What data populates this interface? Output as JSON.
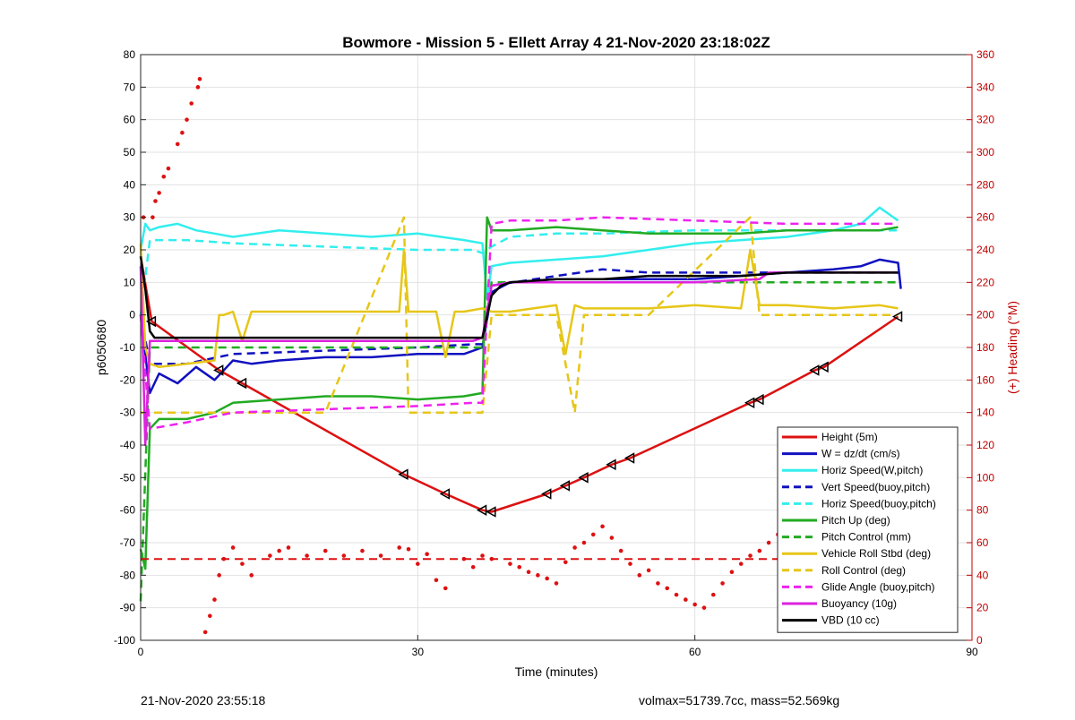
{
  "footer": {
    "left": "21-Nov-2020 23:55:18",
    "right": "volmax=51739.7cc, mass=52.569kg"
  },
  "chart_data": {
    "type": "line",
    "title": "Bowmore - Mission 5 - Ellett Array 4 21-Nov-2020 23:18:02Z",
    "xlabel": "Time (minutes)",
    "ylabel": "p6050680",
    "y2label": "(+) Heading (°M)",
    "xlim": [
      0,
      90
    ],
    "ylim": [
      -100,
      80
    ],
    "y2lim": [
      0,
      360
    ],
    "xticks": [
      0,
      30,
      60,
      90
    ],
    "yticks": [
      -100,
      -90,
      -80,
      -70,
      -60,
      -50,
      -40,
      -30,
      -20,
      -10,
      0,
      10,
      20,
      30,
      40,
      50,
      60,
      70,
      80
    ],
    "y2ticks": [
      0,
      20,
      40,
      60,
      80,
      100,
      120,
      140,
      160,
      180,
      200,
      220,
      240,
      260,
      280,
      300,
      320,
      340,
      360
    ],
    "grid": true,
    "legend_position": "bottom-right",
    "legend_order": [
      "Height (5m)",
      "W = dz/dt (cm/s)",
      "Horiz Speed(W,pitch)",
      "Vert Speed(buoy,pitch)",
      "Horiz Speed(buoy,pitch)",
      "Pitch Up (deg)",
      "Pitch Control (mm)",
      "Vehicle Roll Stbd (deg)",
      "Roll Control (deg)",
      "Glide Angle (buoy,pitch)",
      "Buoyancy (10g)",
      "VBD (10 cc)"
    ],
    "series": [
      {
        "name": "Height (5m)",
        "color": "#dd1111",
        "style": "solid",
        "width": 2.5,
        "axis": "left",
        "x": [
          0,
          1.2,
          8.5,
          11,
          28.5,
          33,
          37,
          38,
          44,
          46,
          48,
          51,
          53,
          66,
          67,
          73,
          74,
          82
        ],
        "y": [
          18,
          -2,
          -17,
          -21,
          -49,
          -55,
          -60,
          -60.5,
          -55,
          -52.5,
          -50,
          -46,
          -44,
          -27,
          -26,
          -17,
          -16,
          -0.5
        ]
      },
      {
        "name": "W = dz/dt (cm/s)",
        "color": "#1010c0",
        "style": "solid",
        "width": 2.5,
        "axis": "left",
        "x": [
          0,
          1,
          2,
          4,
          6,
          8,
          10,
          12,
          15,
          20,
          25,
          30,
          35,
          37,
          38,
          40,
          45,
          50,
          55,
          60,
          65,
          70,
          75,
          78,
          80,
          82,
          82.3
        ],
        "y": [
          0,
          -24,
          -18,
          -21,
          -16,
          -20,
          -14,
          -15,
          -14,
          -13,
          -13,
          -12,
          -12,
          -10,
          7,
          10,
          11,
          11,
          11,
          11,
          12,
          13,
          14,
          15,
          17,
          16,
          8
        ]
      },
      {
        "name": "Horiz Speed(W,pitch)",
        "color": "#33eeee",
        "style": "solid",
        "width": 2.5,
        "axis": "left",
        "x": [
          0,
          0.5,
          1,
          2,
          4,
          6,
          8,
          10,
          15,
          20,
          25,
          30,
          35,
          37,
          37.5,
          38,
          40,
          45,
          50,
          55,
          60,
          65,
          70,
          75,
          78,
          80,
          81,
          82
        ],
        "y": [
          20,
          28,
          26,
          27,
          28,
          26,
          25,
          24,
          26,
          25,
          24,
          25,
          23,
          22,
          5,
          15,
          16,
          17,
          18,
          20,
          22,
          23,
          24,
          26,
          28,
          33,
          31,
          29
        ]
      },
      {
        "name": "Vert Speed(buoy,pitch)",
        "color": "#1010c0",
        "style": "dashed",
        "width": 2.5,
        "axis": "left",
        "x": [
          0,
          1,
          5,
          10,
          20,
          30,
          36,
          37,
          38,
          45,
          50,
          55,
          60,
          68,
          75,
          82
        ],
        "y": [
          0,
          -15,
          -15,
          -12,
          -11,
          -10,
          -9,
          -9,
          9,
          12,
          14,
          13,
          13,
          13,
          13,
          13
        ]
      },
      {
        "name": "Horiz Speed(buoy,pitch)",
        "color": "#33eeee",
        "style": "dashed",
        "width": 2.5,
        "axis": "left",
        "x": [
          0,
          1,
          5,
          10,
          20,
          30,
          36,
          37,
          38,
          40,
          45,
          50,
          60,
          70,
          82
        ],
        "y": [
          0,
          23,
          23,
          22,
          21,
          20,
          20,
          19,
          21,
          24,
          25,
          25,
          26,
          26,
          26
        ]
      },
      {
        "name": "Pitch Up (deg)",
        "color": "#22aa22",
        "style": "solid",
        "width": 2.5,
        "axis": "left",
        "x": [
          0,
          0.5,
          1,
          2,
          5,
          8,
          10,
          15,
          20,
          25,
          30,
          35,
          37,
          37.5,
          38,
          40,
          45,
          50,
          55,
          60,
          65,
          70,
          75,
          80,
          82
        ],
        "y": [
          -72,
          -78,
          -35,
          -32,
          -32,
          -30,
          -27,
          -26,
          -25,
          -25,
          -26,
          -25,
          -24,
          30,
          26,
          26,
          27,
          26,
          25,
          25,
          25,
          26,
          26,
          26,
          27
        ]
      },
      {
        "name": "Pitch Control (mm)",
        "color": "#22aa22",
        "style": "dashed",
        "width": 2.5,
        "axis": "left",
        "x": [
          0,
          1,
          5,
          10,
          20,
          30,
          37,
          38,
          45,
          50,
          60,
          70,
          82
        ],
        "y": [
          -88,
          -10,
          -10,
          -10,
          -10,
          -10,
          -10,
          10,
          10,
          10,
          10,
          10,
          10
        ]
      },
      {
        "name": "Vehicle Roll Stbd (deg)",
        "color": "#e6c619",
        "style": "solid",
        "width": 2.5,
        "axis": "left",
        "x": [
          0,
          0.5,
          1,
          2,
          5,
          8,
          8.5,
          9,
          10,
          11,
          12,
          15,
          20,
          25,
          28,
          28.5,
          29,
          30,
          32,
          33,
          34,
          35,
          37,
          38,
          40,
          45,
          46,
          47,
          48,
          50,
          55,
          60,
          65,
          66,
          67,
          70,
          75,
          80,
          82
        ],
        "y": [
          22,
          -10,
          -15,
          -16,
          -15,
          -14,
          0,
          0,
          1,
          -8,
          1,
          1,
          1,
          1,
          1,
          20,
          1,
          1,
          1,
          -13,
          1,
          1,
          2,
          1,
          1,
          3,
          -12,
          3,
          2,
          2,
          2,
          3,
          2,
          20,
          3,
          3,
          2,
          3,
          2
        ]
      },
      {
        "name": "Roll Control (deg)",
        "color": "#e6c619",
        "style": "dashed",
        "width": 2.5,
        "axis": "left",
        "x": [
          0,
          1,
          5,
          10,
          20,
          28.5,
          29,
          30,
          33,
          34,
          37,
          38,
          45,
          47,
          48,
          55,
          66,
          67,
          75,
          82
        ],
        "y": [
          -30,
          -30,
          -30,
          -30,
          -30,
          30,
          -30,
          -30,
          -30,
          -30,
          -30,
          0,
          0,
          -30,
          0,
          0,
          30,
          0,
          0,
          0
        ]
      },
      {
        "name": "Glide Angle (buoy,pitch)",
        "color": "#ee22ee",
        "style": "dashed",
        "width": 2.5,
        "axis": "left",
        "x": [
          0,
          1,
          5,
          10,
          20,
          30,
          36,
          37,
          38,
          40,
          45,
          50,
          60,
          70,
          82
        ],
        "y": [
          0,
          -35,
          -33,
          -30,
          -29,
          -28,
          -27,
          -27,
          28,
          29,
          29,
          30,
          29,
          28,
          28
        ]
      },
      {
        "name": "Buoyancy (10g)",
        "color": "#dd22dd",
        "style": "solid",
        "width": 2.5,
        "axis": "left",
        "x": [
          0,
          0.5,
          1,
          10,
          20,
          30,
          36,
          37,
          38,
          40,
          50,
          60,
          67,
          68,
          75,
          82
        ],
        "y": [
          15,
          -40,
          -8,
          -8,
          -8,
          -8,
          -8,
          -7,
          9,
          10,
          10,
          10,
          11,
          13,
          13,
          13
        ]
      },
      {
        "name": "VBD (10 cc)",
        "color": "#000000",
        "style": "solid",
        "width": 2.5,
        "axis": "left",
        "x": [
          0,
          0.5,
          1,
          1.5,
          10,
          20,
          30,
          36,
          37,
          38,
          39,
          40,
          45,
          50,
          55,
          60,
          65,
          70,
          82
        ],
        "y": [
          18,
          8,
          -5,
          -7,
          -7,
          -7,
          -7,
          -7,
          -7,
          6,
          9,
          10,
          11,
          11,
          12,
          12,
          12,
          13,
          13
        ]
      },
      {
        "name": "Heading",
        "color": "#dd1111",
        "style": "dots",
        "axis": "right",
        "show_in_legend": false,
        "x": [
          0.3,
          1.3,
          1.6,
          2,
          2.5,
          3,
          4,
          4.5,
          5,
          5.5,
          6.2,
          6.4,
          7,
          7.5,
          8,
          8.5,
          9,
          10,
          11,
          12,
          14,
          15,
          16,
          18,
          20,
          22,
          24,
          26,
          28,
          29,
          30,
          31,
          32,
          33,
          35,
          36,
          37,
          38,
          40,
          41,
          42,
          43,
          44,
          45,
          46,
          47,
          48,
          49,
          50,
          51,
          52,
          53,
          54,
          55,
          56,
          57,
          58,
          59,
          60,
          61,
          62,
          63,
          64,
          65,
          66,
          67,
          68,
          69,
          70,
          71,
          72,
          73,
          74,
          75,
          76,
          77,
          78,
          79,
          80,
          81,
          82
        ],
        "y": [
          260,
          260,
          270,
          275,
          285,
          290,
          305,
          312,
          320,
          330,
          340,
          345,
          5,
          15,
          25,
          40,
          50,
          57,
          47,
          40,
          52,
          55,
          57,
          52,
          55,
          52,
          55,
          52,
          57,
          56,
          47,
          53,
          37,
          32,
          50,
          45,
          52,
          50,
          47,
          45,
          42,
          40,
          38,
          35,
          48,
          57,
          60,
          65,
          70,
          63,
          55,
          47,
          40,
          43,
          35,
          32,
          28,
          25,
          22,
          20,
          28,
          35,
          42,
          47,
          52,
          55,
          60,
          65,
          68,
          65,
          60,
          55,
          58,
          55,
          52,
          48,
          42,
          38,
          50,
          55,
          58
        ]
      },
      {
        "name": "Heading target",
        "color": "#dd1111",
        "style": "dashed",
        "axis": "right",
        "show_in_legend": false,
        "x": [
          0,
          82
        ],
        "y": [
          50,
          50
        ]
      },
      {
        "name": "Waypoint markers",
        "color": "#000000",
        "style": "triangles",
        "axis": "left",
        "show_in_legend": false,
        "x": [
          1.2,
          8.5,
          11,
          28.5,
          33,
          37,
          38,
          44,
          46,
          48,
          51,
          53,
          66,
          67,
          73,
          74,
          82
        ],
        "y": [
          -2,
          -17,
          -21,
          -49,
          -55,
          -60,
          -60.5,
          -55,
          -52.5,
          -50,
          -46,
          -44,
          -27,
          -26,
          -17,
          -16,
          -0.5
        ]
      }
    ]
  }
}
